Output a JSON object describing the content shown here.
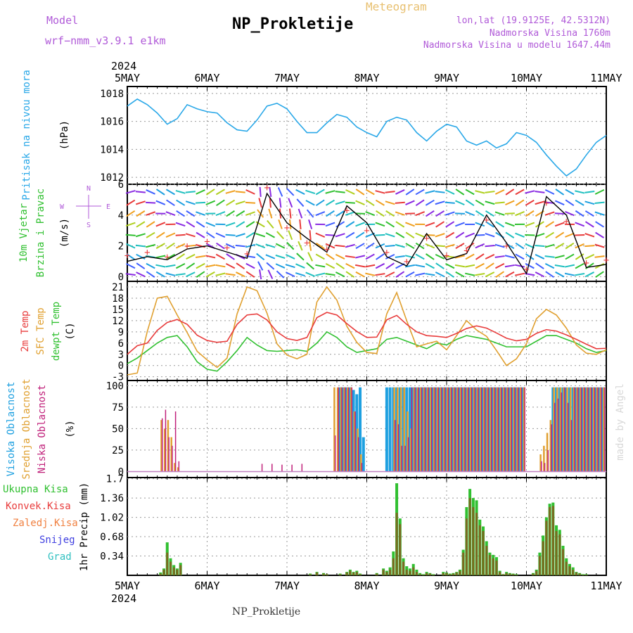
{
  "header": {
    "model_label": "Model",
    "model_name": "wrf−nmm_v3.9.1  e1km",
    "product": "Meteogram",
    "station": "NP_Prokletije",
    "coords": "lon,lat (19.9125E, 42.5312N)",
    "elevation": "Nadmorska Visina 1760m",
    "model_elevation": "Nadmorska Visina u modelu 1647.44m"
  },
  "footer": {
    "station": "NP_Prokletije"
  },
  "credit": "made by Angel",
  "time_axis": {
    "year": "2024",
    "labels": [
      "5MAY",
      "6MAY",
      "7MAY",
      "8MAY",
      "9MAY",
      "10MAY",
      "11MAY"
    ]
  },
  "colors": {
    "pressure": "#2aa8e8",
    "temp2m": "#e83c3c",
    "sfc_temp": "#e0a030",
    "dewpoint": "#30c030",
    "high_cloud": "#1ea0e0",
    "mid_cloud": "#e0a030",
    "low_cloud": "#c0207a",
    "total_precip": "#30c030",
    "conv_precip": "#e83c3c",
    "frozen_precip": "#f08040",
    "snow": "#4040e0",
    "graupel": "#30c0c0",
    "wind_speed": "#000000",
    "gust": "#e83c3c"
  },
  "panel_labels": {
    "pressure": {
      "title": "Pritisak na nivou mora",
      "unit": "(hPa)"
    },
    "wind": {
      "title1": "10m Vjetar",
      "title2": "Brzina i Pravac",
      "unit": "(m/s)",
      "compass_n": "N",
      "compass_s": "S",
      "compass_e": "E",
      "compass_w": "W"
    },
    "temperature": {
      "t2m": "2m Temp",
      "sfc": "SFC Temp",
      "dew": "dewpt Temp",
      "unit": "(C)"
    },
    "clouds": {
      "high": "Visoka Oblacnost",
      "mid": "Srednja Oblacnost",
      "low": "Niska Oblacnost",
      "unit": "(%)"
    },
    "precip": {
      "legend": [
        "Ukupna Kisa",
        "Konvek.Kisa",
        "Zaledj.Kisa",
        "Snijeg",
        "Grad"
      ],
      "ylabel": "1hr Precip (mm)"
    }
  },
  "chart_data": [
    {
      "type": "line",
      "name": "pressure",
      "title": "Pritisak na nivou mora",
      "ylabel": "(hPa)",
      "ylim": [
        1011.5,
        1018.5
      ],
      "yticks": [
        1012,
        1014,
        1016,
        1018
      ],
      "x_unit": "hours since 5MAY 00UTC",
      "x": [
        0,
        3,
        6,
        9,
        12,
        15,
        18,
        21,
        24,
        27,
        30,
        33,
        36,
        39,
        42,
        45,
        48,
        51,
        54,
        57,
        60,
        63,
        66,
        69,
        72,
        75,
        78,
        81,
        84,
        87,
        90,
        93,
        96,
        99,
        102,
        105,
        108,
        111,
        114,
        117,
        120,
        123,
        126,
        129,
        132,
        135,
        138,
        141,
        144
      ],
      "series": [
        {
          "name": "pressure",
          "values": [
            1017.1,
            1017.6,
            1017.2,
            1016.6,
            1015.8,
            1016.2,
            1017.2,
            1016.9,
            1016.7,
            1016.6,
            1015.9,
            1015.4,
            1015.3,
            1016.1,
            1017.1,
            1017.3,
            1016.9,
            1016.0,
            1015.2,
            1015.2,
            1015.9,
            1016.5,
            1016.3,
            1015.6,
            1015.2,
            1014.9,
            1016.0,
            1016.3,
            1016.1,
            1015.2,
            1014.6,
            1015.3,
            1015.8,
            1015.6,
            1014.6,
            1014.3,
            1014.6,
            1014.1,
            1014.4,
            1015.2,
            1015.0,
            1014.5,
            1013.6,
            1012.8,
            1012.1,
            1012.6,
            1013.6,
            1014.5,
            1015.0
          ]
        }
      ]
    },
    {
      "type": "line",
      "name": "wind",
      "title1": "10m Vjetar",
      "title2": "Brzina i Pravac",
      "ylabel": "(m/s)",
      "ylim": [
        -0.3,
        6
      ],
      "yticks": [
        0,
        2,
        4,
        6
      ],
      "x": [
        0,
        6,
        12,
        18,
        24,
        30,
        36,
        42,
        48,
        54,
        60,
        66,
        72,
        78,
        84,
        90,
        96,
        102,
        108,
        114,
        120,
        126,
        132,
        138,
        144
      ],
      "series": [
        {
          "name": "speed",
          "values": [
            1.0,
            1.3,
            1.1,
            1.8,
            2.0,
            1.6,
            1.2,
            5.4,
            3.5,
            2.5,
            1.6,
            4.6,
            3.5,
            1.3,
            0.7,
            2.8,
            1.1,
            1.5,
            4.0,
            2.2,
            0.2,
            5.2,
            4.0,
            0.6,
            0.8
          ]
        },
        {
          "name": "gust",
          "values": [
            1.4,
            1.6,
            1.3,
            2.0,
            2.3,
            1.9,
            1.5,
            5.8,
            3.2,
            2.2,
            1.8,
            4.3,
            3.0,
            1.6,
            1.0,
            2.5,
            1.4,
            1.7,
            3.7,
            2.0,
            0.5,
            4.8,
            3.6,
            0.9,
            1.1
          ]
        }
      ]
    },
    {
      "type": "line",
      "name": "temperature",
      "ylabel": "(C)",
      "ylim": [
        -4,
        22.5
      ],
      "yticks": [
        -3,
        0,
        3,
        6,
        9,
        12,
        15,
        18,
        21
      ],
      "x": [
        0,
        3,
        6,
        9,
        12,
        15,
        18,
        21,
        24,
        27,
        30,
        33,
        36,
        39,
        42,
        45,
        48,
        51,
        54,
        57,
        60,
        63,
        66,
        69,
        72,
        75,
        78,
        81,
        84,
        87,
        90,
        93,
        96,
        99,
        102,
        105,
        108,
        111,
        114,
        117,
        120,
        123,
        126,
        129,
        132,
        135,
        138,
        141,
        144
      ],
      "series": [
        {
          "name": "2m Temp",
          "values": [
            3.0,
            5.3,
            6.0,
            9.4,
            11.5,
            12.3,
            11.0,
            8.1,
            6.7,
            6.2,
            6.5,
            11.0,
            13.5,
            13.8,
            12.2,
            9.0,
            7.2,
            6.7,
            7.5,
            12.8,
            14.2,
            13.5,
            11.2,
            9.1,
            7.5,
            7.6,
            12.2,
            13.4,
            11.0,
            9.0,
            8.0,
            7.8,
            7.5,
            8.6,
            9.9,
            10.6,
            10.0,
            8.7,
            7.3,
            6.6,
            7.0,
            8.6,
            9.6,
            9.2,
            8.2,
            7.0,
            5.7,
            4.5,
            4.6
          ]
        },
        {
          "name": "SFC Temp",
          "values": [
            -2.5,
            -2.0,
            9.1,
            18.0,
            18.5,
            13.5,
            8.8,
            3.8,
            1.5,
            -0.5,
            2.0,
            13.8,
            21.0,
            20.0,
            14.0,
            5.8,
            2.8,
            1.8,
            3.0,
            17.0,
            21.0,
            17.5,
            10.5,
            6.2,
            3.5,
            3.2,
            13.8,
            19.5,
            12.0,
            5.0,
            5.8,
            6.5,
            4.2,
            8.0,
            12.0,
            9.5,
            7.8,
            4.0,
            0.0,
            1.8,
            5.8,
            12.5,
            15.0,
            13.5,
            10.0,
            5.5,
            3.3,
            3.0,
            4.2
          ]
        },
        {
          "name": "dewpt Temp",
          "values": [
            0.5,
            2.0,
            4.0,
            6.0,
            7.5,
            8.0,
            5.0,
            1.0,
            -1.0,
            -1.5,
            1.0,
            4.0,
            7.5,
            5.5,
            4.0,
            3.8,
            4.0,
            4.2,
            3.8,
            6.0,
            9.0,
            7.5,
            5.0,
            3.5,
            4.0,
            4.5,
            7.0,
            7.5,
            6.5,
            5.5,
            4.5,
            6.0,
            5.5,
            7.0,
            8.0,
            7.5,
            7.0,
            6.0,
            5.0,
            5.0,
            5.0,
            6.5,
            8.0,
            8.0,
            7.0,
            6.0,
            4.5,
            3.5,
            4.0
          ]
        }
      ]
    },
    {
      "type": "bar",
      "name": "clouds",
      "ylabel": "(%)",
      "ylim": [
        0,
        100
      ],
      "yticks": [
        0,
        25,
        50,
        75,
        100
      ],
      "x": [
        10,
        11,
        12,
        13,
        14,
        15,
        16,
        17,
        40,
        43,
        46,
        49,
        52,
        62,
        63,
        64,
        65,
        66,
        67,
        68,
        69,
        70,
        71,
        72,
        78,
        79,
        80,
        81,
        82,
        83,
        84,
        85,
        86,
        87,
        88,
        89,
        90,
        91,
        92,
        93,
        94,
        95,
        96,
        97,
        98,
        99,
        100,
        101,
        102,
        103,
        104,
        105,
        106,
        107,
        108,
        109,
        110,
        111,
        112,
        113,
        114,
        115,
        116,
        117,
        118,
        119,
        124,
        125,
        126,
        127,
        128,
        129,
        130,
        131,
        132,
        133,
        134,
        135,
        136,
        137,
        138,
        139,
        140,
        141,
        142,
        143
      ],
      "series": [
        {
          "name": "Visoka Oblacnost",
          "values": [
            0,
            0,
            0,
            0,
            0,
            0,
            0,
            0,
            0,
            0,
            0,
            0,
            0,
            0,
            0,
            98,
            98,
            98,
            98,
            95,
            90,
            98,
            40,
            0,
            98,
            98,
            98,
            98,
            98,
            98,
            98,
            98,
            98,
            98,
            98,
            98,
            98,
            98,
            98,
            98,
            98,
            98,
            98,
            98,
            98,
            98,
            98,
            98,
            98,
            98,
            98,
            98,
            98,
            98,
            98,
            98,
            98,
            98,
            98,
            98,
            98,
            98,
            98,
            98,
            98,
            98,
            0,
            0,
            0,
            0,
            98,
            98,
            98,
            98,
            98,
            98,
            98,
            98,
            98,
            98,
            98,
            98,
            98,
            98,
            98,
            98
          ]
        },
        {
          "name": "Srednja Oblacnost",
          "values": [
            60,
            50,
            60,
            40,
            10,
            5,
            0,
            0,
            0,
            0,
            0,
            0,
            0,
            98,
            98,
            98,
            98,
            98,
            98,
            70,
            50,
            20,
            0,
            0,
            0,
            0,
            98,
            98,
            98,
            98,
            70,
            50,
            98,
            98,
            98,
            98,
            98,
            98,
            98,
            98,
            98,
            98,
            98,
            98,
            98,
            98,
            98,
            98,
            98,
            98,
            98,
            98,
            98,
            98,
            98,
            98,
            98,
            98,
            98,
            98,
            98,
            98,
            98,
            98,
            98,
            98,
            20,
            30,
            45,
            60,
            98,
            98,
            98,
            98,
            98,
            98,
            98,
            98,
            98,
            98,
            98,
            98,
            98,
            98,
            98,
            98
          ]
        },
        {
          "name": "Niska Oblacnost",
          "values": [
            62,
            72,
            40,
            30,
            70,
            12,
            0,
            0,
            9,
            9,
            8,
            8,
            9,
            42,
            98,
            98,
            98,
            98,
            98,
            70,
            40,
            10,
            0,
            0,
            0,
            0,
            60,
            55,
            30,
            30,
            40,
            98,
            98,
            98,
            98,
            98,
            98,
            98,
            98,
            98,
            98,
            98,
            98,
            98,
            98,
            98,
            98,
            98,
            98,
            98,
            98,
            98,
            98,
            98,
            98,
            98,
            98,
            98,
            98,
            98,
            98,
            98,
            98,
            98,
            98,
            98,
            12,
            10,
            25,
            55,
            80,
            85,
            92,
            98,
            80,
            60,
            98,
            98,
            98,
            98,
            98,
            98,
            98,
            98,
            98,
            98
          ]
        }
      ]
    },
    {
      "type": "bar",
      "name": "precip",
      "ylabel": "1hr Precip (mm)",
      "ylim": [
        0,
        1.7
      ],
      "yticks": [
        0.34,
        0.68,
        1.02,
        1.36,
        1.7
      ],
      "x": [
        10,
        11,
        12,
        13,
        14,
        15,
        16,
        55,
        57,
        59,
        60,
        64,
        66,
        67,
        68,
        69,
        70,
        75,
        77,
        78,
        79,
        80,
        81,
        82,
        83,
        84,
        85,
        86,
        87,
        88,
        89,
        90,
        91,
        92,
        95,
        96,
        97,
        98,
        99,
        100,
        101,
        102,
        103,
        104,
        105,
        106,
        107,
        108,
        109,
        110,
        111,
        112,
        113,
        114,
        115,
        116,
        117,
        122,
        123,
        124,
        125,
        126,
        127,
        128,
        129,
        130,
        131,
        132,
        133,
        134,
        135,
        136,
        137,
        138
      ],
      "series": [
        {
          "name": "Ukupna Kisa",
          "values": [
            0.05,
            0.12,
            0.58,
            0.3,
            0.18,
            0.12,
            0.22,
            0.03,
            0.06,
            0.04,
            0.02,
            0.03,
            0.06,
            0.1,
            0.06,
            0.08,
            0.03,
            0.04,
            0.12,
            0.08,
            0.14,
            0.42,
            1.62,
            1.0,
            0.3,
            0.16,
            0.12,
            0.2,
            0.1,
            0.04,
            0.02,
            0.06,
            0.04,
            0.02,
            0.06,
            0.05,
            0.03,
            0.04,
            0.06,
            0.1,
            0.45,
            1.2,
            1.52,
            1.36,
            1.32,
            0.98,
            0.86,
            0.6,
            0.4,
            0.36,
            0.32,
            0.08,
            0.02,
            0.06,
            0.04,
            0.03,
            0.02,
            0.04,
            0.1,
            0.4,
            0.7,
            1.02,
            1.26,
            1.28,
            0.88,
            0.8,
            0.52,
            0.3,
            0.2,
            0.14,
            0.06,
            0.04,
            0.02,
            0.02
          ]
        },
        {
          "name": "Konvek.Kisa",
          "values": [
            0.03,
            0.1,
            0.4,
            0.24,
            0.14,
            0.1,
            0.18,
            0.02,
            0.05,
            0.03,
            0.02,
            0.02,
            0.05,
            0.08,
            0.05,
            0.06,
            0.02,
            0.03,
            0.1,
            0.06,
            0.1,
            0.3,
            1.1,
            0.9,
            0.24,
            0.1,
            0.08,
            0.14,
            0.06,
            0.02,
            0.01,
            0.04,
            0.03,
            0.01,
            0.04,
            0.04,
            0.02,
            0.03,
            0.05,
            0.08,
            0.4,
            1.0,
            1.36,
            1.2,
            1.1,
            0.88,
            0.78,
            0.52,
            0.36,
            0.3,
            0.26,
            0.06,
            0.02,
            0.04,
            0.03,
            0.02,
            0.01,
            0.03,
            0.08,
            0.34,
            0.6,
            0.96,
            1.2,
            1.22,
            0.78,
            0.72,
            0.46,
            0.24,
            0.16,
            0.1,
            0.05,
            0.03,
            0.01,
            0.01
          ]
        }
      ]
    }
  ]
}
